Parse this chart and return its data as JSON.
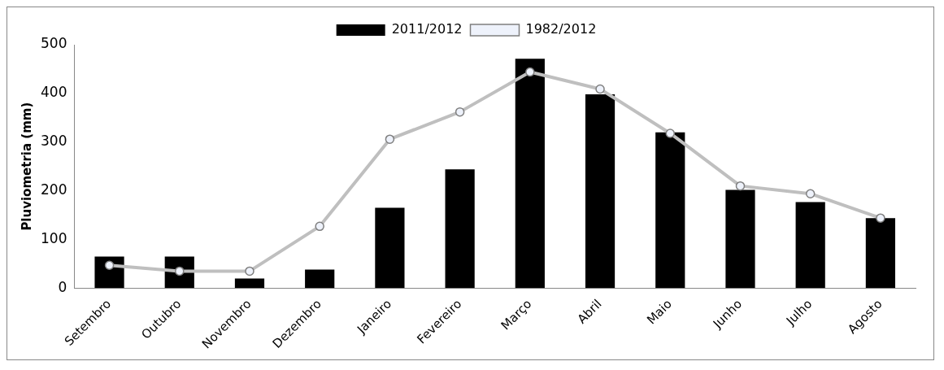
{
  "chart_data": {
    "type": "bar",
    "ylabel": "Pluviometria (mm)",
    "categories": [
      "Setembro",
      "Outubro",
      "Novembro",
      "Dezembro",
      "Janeiro",
      "Fevereiro",
      "Março",
      "Abril",
      "Maio",
      "Junho",
      "Julho",
      "Agosto"
    ],
    "series": [
      {
        "name": "2011/2012",
        "color": "#000000",
        "values": [
          65,
          65,
          20,
          38,
          165,
          244,
          471,
          398,
          320,
          202,
          177,
          144
        ]
      },
      {
        "name": "1982/2012",
        "type": "line",
        "color": "#bfbfbf",
        "values": [
          47,
          35,
          35,
          127,
          306,
          362,
          444,
          409,
          318,
          210,
          194,
          144
        ]
      }
    ],
    "ylim": [
      0,
      500
    ],
    "yticks": [
      0,
      100,
      200,
      300,
      400,
      500
    ],
    "grid": false,
    "legend": "top",
    "marker": "circle",
    "line_style": "solid"
  }
}
